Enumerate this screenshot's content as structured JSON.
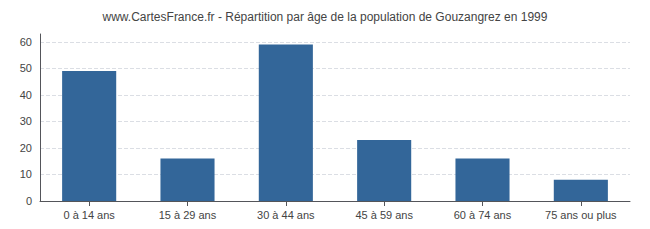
{
  "chart_data": {
    "type": "bar",
    "title": "www.CartesFrance.fr - Répartition par âge de la population de Gouzangrez en 1999",
    "categories": [
      "0 à 14 ans",
      "15 à 29 ans",
      "30 à 44 ans",
      "45 à 59 ans",
      "60 à 74 ans",
      "75 ans ou plus"
    ],
    "values": [
      49,
      16,
      59,
      23,
      16,
      8
    ],
    "color": "#336699",
    "ylim": [
      0,
      63
    ],
    "yticks": [
      0,
      10,
      20,
      30,
      40,
      50,
      60
    ],
    "grid": true
  }
}
